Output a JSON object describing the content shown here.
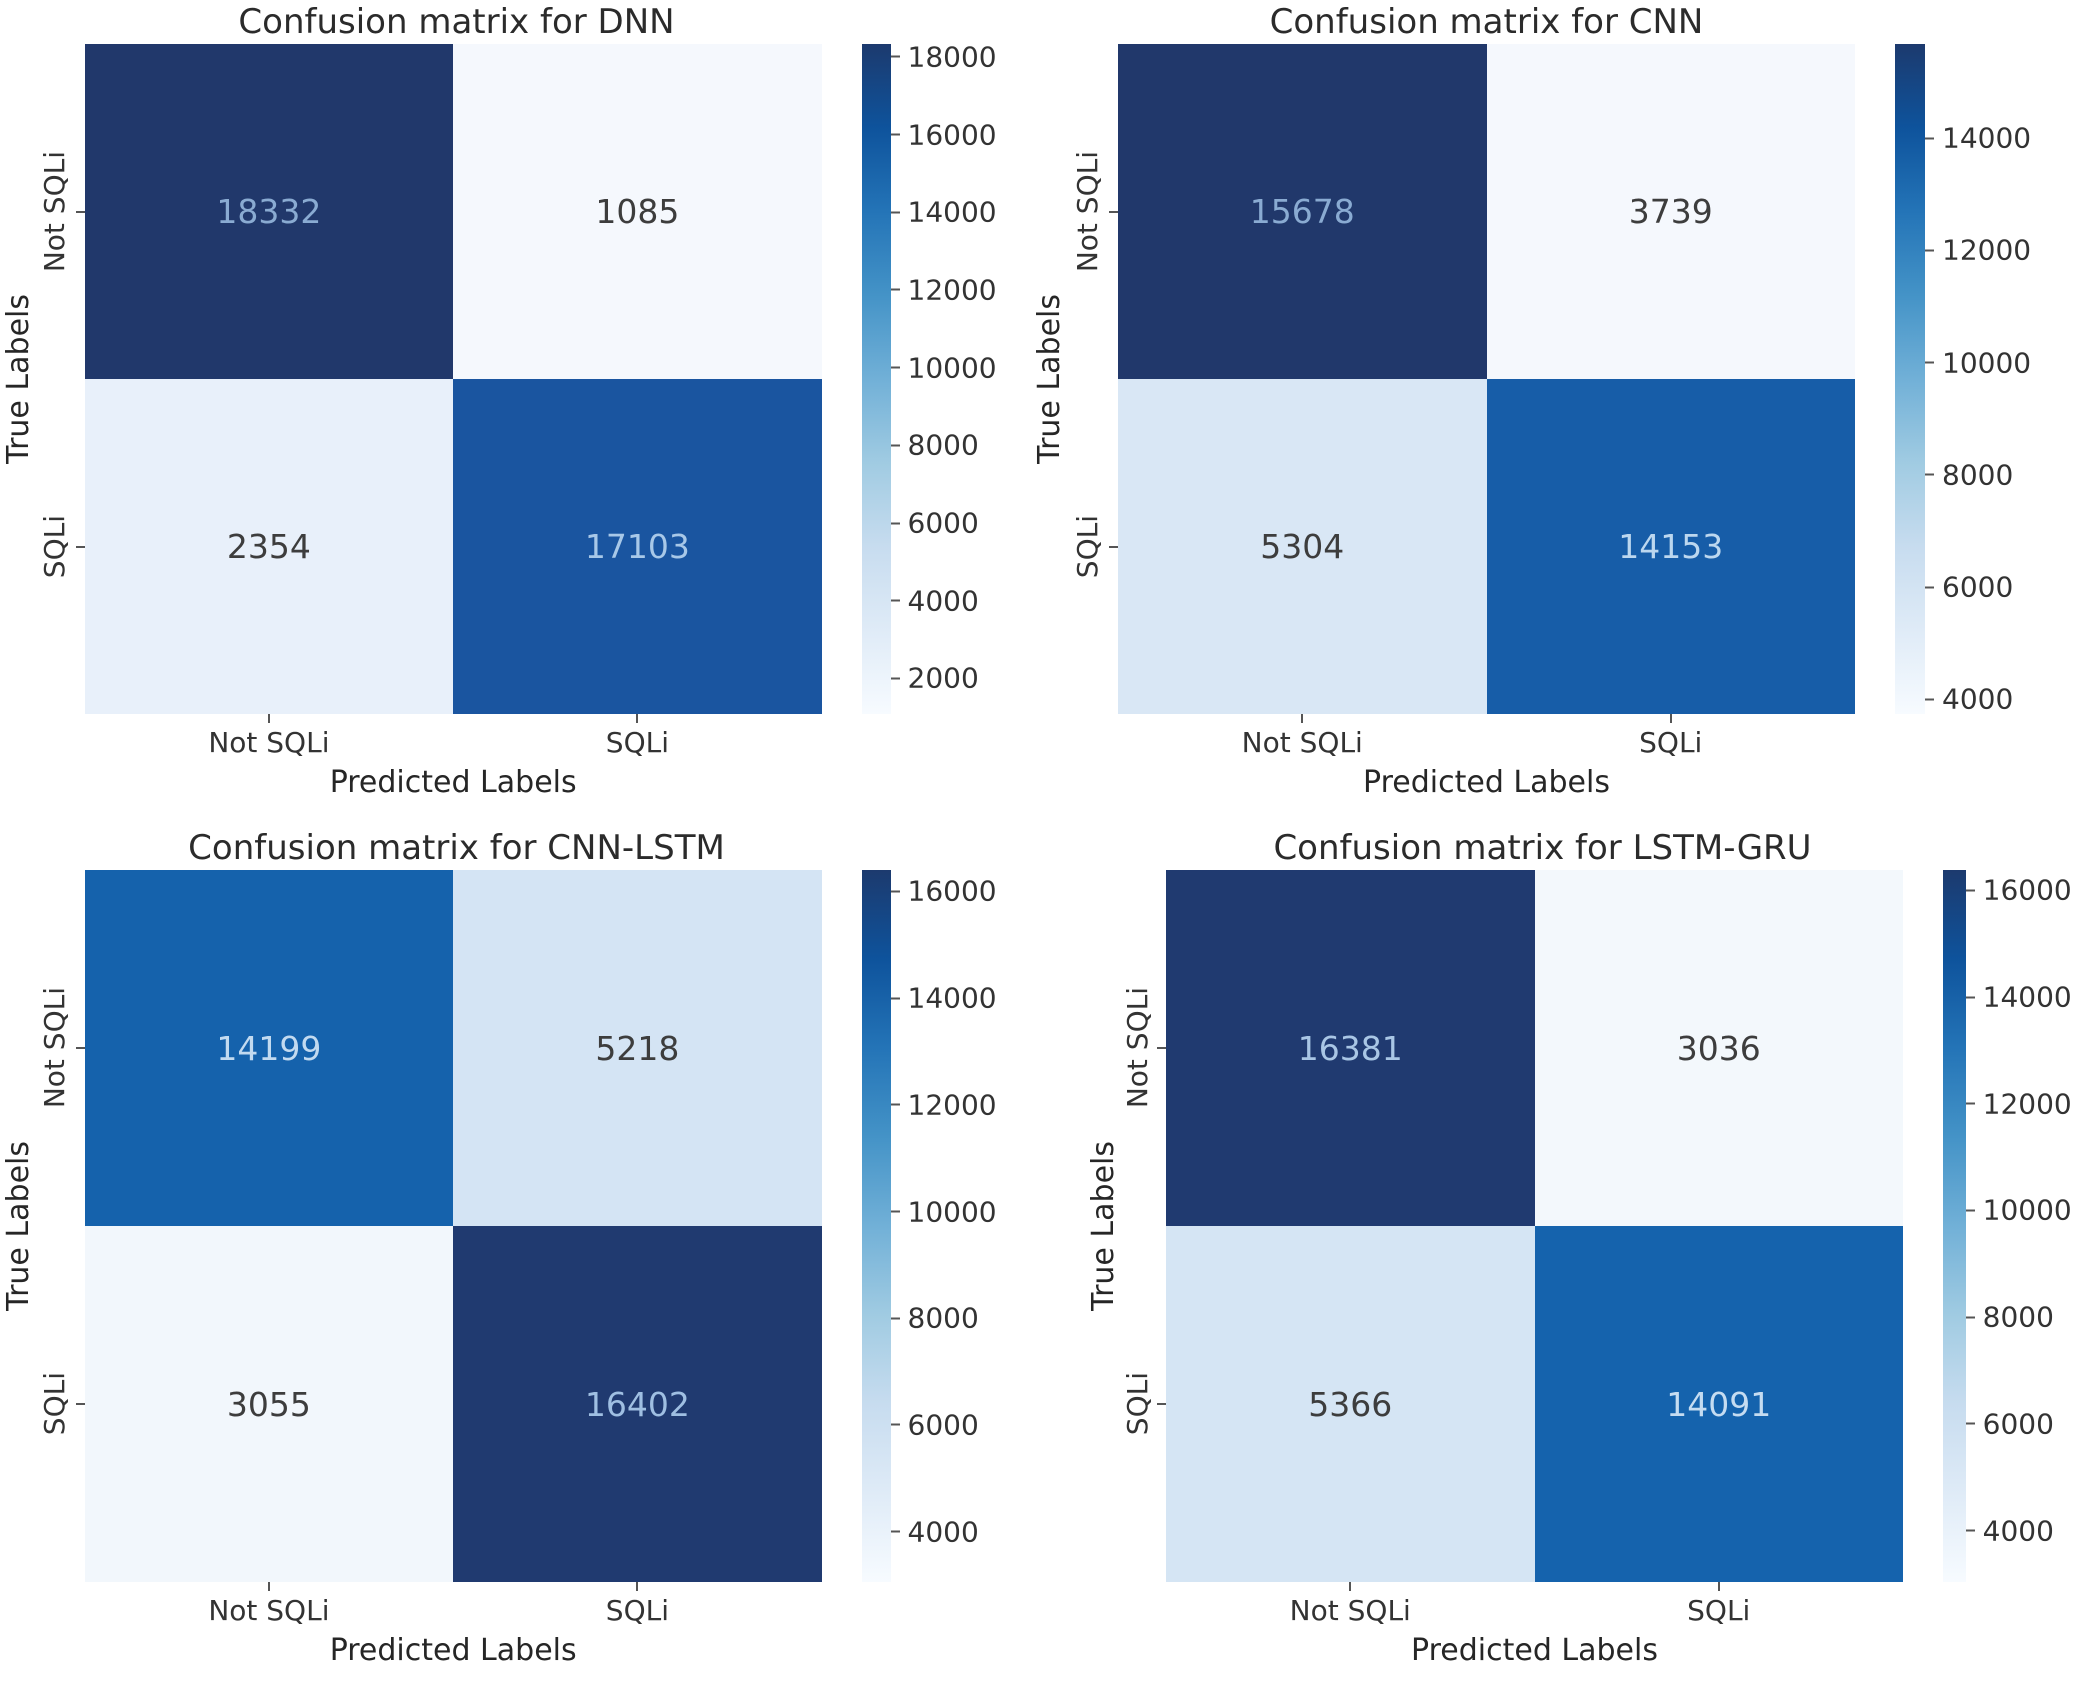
{
  "figure": {
    "background": "#ffffff",
    "colormap": "Blues"
  },
  "chart_data": [
    {
      "type": "heatmap",
      "model": "DNN",
      "title": "Confusion matrix for DNN",
      "xlabel": "Predicted Labels",
      "ylabel": "True Labels",
      "x_categories": [
        "Not SQLi",
        "SQLi"
      ],
      "y_categories": [
        "Not SQLi",
        "SQLi"
      ],
      "matrix": [
        [
          18332,
          1085
        ],
        [
          2354,
          17103
        ]
      ],
      "cell_colors": [
        [
          "#21386b",
          "#f5f8fd"
        ],
        [
          "#e8f0fa",
          "#1a55a0"
        ]
      ],
      "cell_text_colors": [
        [
          "#8aabd2",
          "#3d3d3d"
        ],
        [
          "#3d3d3d",
          "#a8c8e8"
        ]
      ],
      "colorbar": {
        "position": "right",
        "vmin": 1085,
        "vmax": 18332,
        "ticks": [
          2000,
          4000,
          6000,
          8000,
          10000,
          12000,
          14000,
          16000,
          18000
        ]
      }
    },
    {
      "type": "heatmap",
      "model": "CNN",
      "title": "Confusion matrix for CNN",
      "xlabel": "Predicted Labels",
      "ylabel": "True Labels",
      "x_categories": [
        "Not SQLi",
        "SQLi"
      ],
      "y_categories": [
        "Not SQLi",
        "SQLi"
      ],
      "matrix": [
        [
          15678,
          3739
        ],
        [
          5304,
          14153
        ]
      ],
      "cell_colors": [
        [
          "#21386b",
          "#f5f8fd"
        ],
        [
          "#d9e7f5",
          "#175da8"
        ]
      ],
      "cell_text_colors": [
        [
          "#8aabd2",
          "#3d3d3d"
        ],
        [
          "#3d3d3d",
          "#bcd7ef"
        ]
      ],
      "colorbar": {
        "position": "right",
        "vmin": 3739,
        "vmax": 15678,
        "ticks": [
          4000,
          6000,
          8000,
          10000,
          12000,
          14000
        ]
      }
    },
    {
      "type": "heatmap",
      "model": "CNN-LSTM",
      "title": "Confusion matrix for CNN-LSTM",
      "xlabel": "Predicted Labels",
      "ylabel": "True Labels",
      "x_categories": [
        "Not SQLi",
        "SQLi"
      ],
      "y_categories": [
        "Not SQLi",
        "SQLi"
      ],
      "matrix": [
        [
          14199,
          5218
        ],
        [
          3055,
          16402
        ]
      ],
      "cell_colors": [
        [
          "#1562ac",
          "#d4e4f4"
        ],
        [
          "#f2f7fc",
          "#203a70"
        ]
      ],
      "cell_text_colors": [
        [
          "#c2daf0",
          "#3d3d3d"
        ],
        [
          "#3d3d3d",
          "#9fbfe2"
        ]
      ],
      "colorbar": {
        "position": "right",
        "vmin": 3055,
        "vmax": 16402,
        "ticks": [
          4000,
          6000,
          8000,
          10000,
          12000,
          14000,
          16000
        ]
      }
    },
    {
      "type": "heatmap",
      "model": "LSTM-GRU",
      "title": "Confusion matrix for LSTM-GRU",
      "xlabel": "Predicted Labels",
      "ylabel": "True Labels",
      "x_categories": [
        "Not SQLi",
        "SQLi"
      ],
      "y_categories": [
        "Not SQLi",
        "SQLi"
      ],
      "matrix": [
        [
          16381,
          3036
        ],
        [
          5366,
          14091
        ]
      ],
      "cell_colors": [
        [
          "#203a70",
          "#f3f8fc"
        ],
        [
          "#d5e5f4",
          "#1563ad"
        ]
      ],
      "cell_text_colors": [
        [
          "#a9c6e5",
          "#3d3d3d"
        ],
        [
          "#3d3d3d",
          "#c5dcf1"
        ]
      ],
      "colorbar": {
        "position": "right",
        "vmin": 3036,
        "vmax": 16381,
        "ticks": [
          4000,
          6000,
          8000,
          10000,
          12000,
          14000,
          16000
        ]
      }
    }
  ]
}
